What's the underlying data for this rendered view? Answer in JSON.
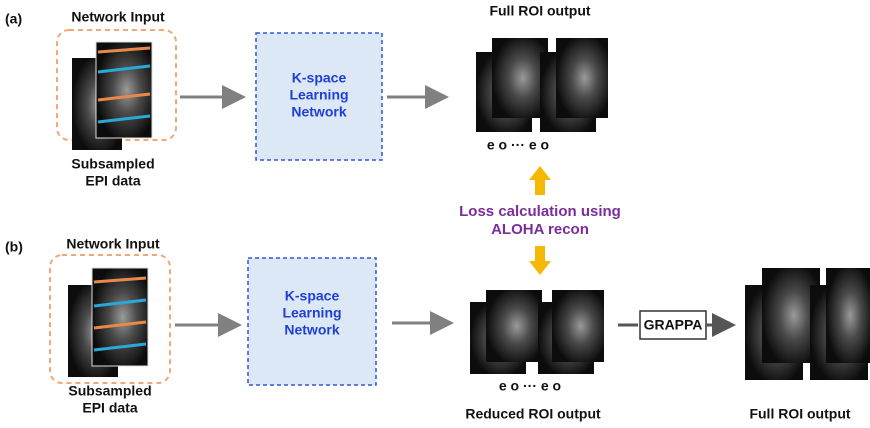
{
  "panels": [
    {
      "label": "(a)",
      "input_title": "Network Input",
      "input_caption": [
        "Subsampled",
        "EPI data"
      ],
      "network": [
        "K-space",
        "Learning",
        "Network"
      ],
      "output_title": "Full ROI output",
      "echo_labels": "e o ··· e o"
    },
    {
      "label": "(b)",
      "input_title": "Network Input",
      "input_caption": [
        "Subsampled",
        "EPI data"
      ],
      "network": [
        "K-space",
        "Learning",
        "Network"
      ],
      "echo_labels": "e o ··· e o",
      "output_title": "Reduced ROI output",
      "grappa": "GRAPPA",
      "final_output": "Full ROI output"
    }
  ],
  "loss": [
    "Loss calculation using",
    "ALOHA recon"
  ]
}
